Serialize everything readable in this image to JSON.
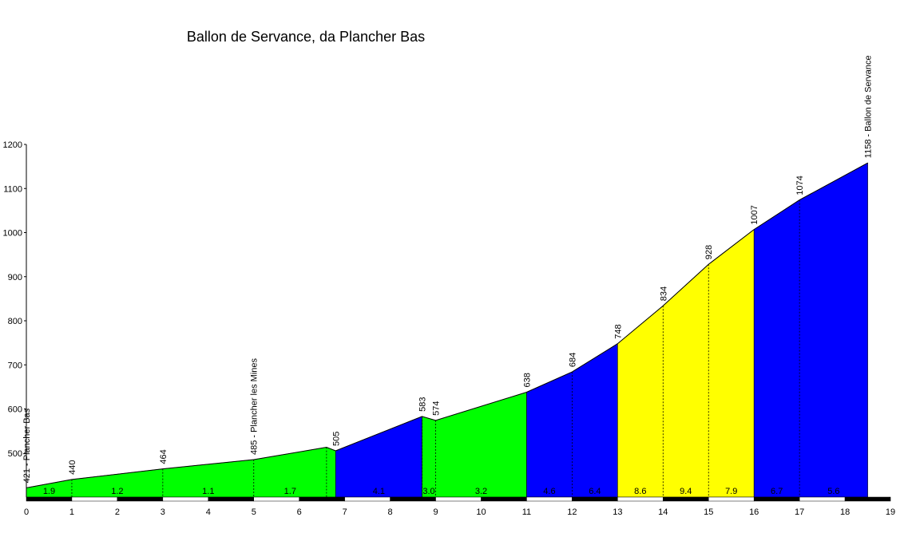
{
  "chart_data": {
    "type": "area",
    "title": "Ballon de Servance, da Plancher Bas",
    "xlabel": "",
    "ylabel": "",
    "xlim": [
      0,
      19
    ],
    "ylim": [
      400,
      1200
    ],
    "x_ticks": [
      0,
      1,
      2,
      3,
      4,
      5,
      6,
      7,
      8,
      9,
      10,
      11,
      12,
      13,
      14,
      15,
      16,
      17,
      18,
      19
    ],
    "y_ticks": [
      500,
      600,
      700,
      800,
      900,
      1000,
      1100,
      1200
    ],
    "points": [
      {
        "x": 0,
        "y": 421
      },
      {
        "x": 1,
        "y": 440
      },
      {
        "x": 3,
        "y": 464
      },
      {
        "x": 5,
        "y": 485
      },
      {
        "x": 6.6,
        "y": 513
      },
      {
        "x": 6.8,
        "y": 505
      },
      {
        "x": 8.7,
        "y": 583
      },
      {
        "x": 9.0,
        "y": 574
      },
      {
        "x": 11,
        "y": 638
      },
      {
        "x": 12,
        "y": 684
      },
      {
        "x": 13,
        "y": 748
      },
      {
        "x": 14,
        "y": 834
      },
      {
        "x": 15,
        "y": 928
      },
      {
        "x": 16,
        "y": 1007
      },
      {
        "x": 17,
        "y": 1074
      },
      {
        "x": 18.5,
        "y": 1158
      }
    ],
    "segments": [
      {
        "x0": 0,
        "x1": 6.8,
        "color": "#00ff00"
      },
      {
        "x0": 6.8,
        "x1": 8.7,
        "color": "#0000ff"
      },
      {
        "x0": 8.7,
        "x1": 11,
        "color": "#00ff00"
      },
      {
        "x0": 11,
        "x1": 13,
        "color": "#0000ff"
      },
      {
        "x0": 13,
        "x1": 16,
        "color": "#ffff00"
      },
      {
        "x0": 16,
        "x1": 18.5,
        "color": "#0000ff"
      }
    ],
    "markers": [
      {
        "x": 0,
        "label": "421 - Plancher Bas",
        "type": "place"
      },
      {
        "x": 1,
        "label": "440",
        "type": "elev"
      },
      {
        "x": 3,
        "label": "464",
        "type": "elev"
      },
      {
        "x": 5,
        "label": "485 - Plancher les Mines",
        "type": "place"
      },
      {
        "x": 6.8,
        "label": "505",
        "type": "elev"
      },
      {
        "x": 8.7,
        "label": "583",
        "type": "elev"
      },
      {
        "x": 9.0,
        "label": "574",
        "type": "elev"
      },
      {
        "x": 11,
        "label": "638",
        "type": "elev"
      },
      {
        "x": 12,
        "label": "684",
        "type": "elev"
      },
      {
        "x": 13,
        "label": "748",
        "type": "elev"
      },
      {
        "x": 14,
        "label": "834",
        "type": "elev"
      },
      {
        "x": 15,
        "label": "928",
        "type": "elev"
      },
      {
        "x": 16,
        "label": "1007",
        "type": "elev"
      },
      {
        "x": 17,
        "label": "1074",
        "type": "elev"
      },
      {
        "x": 18.5,
        "label": "1158 - Ballon de Servance",
        "type": "place"
      }
    ],
    "dashed_x": [
      1,
      3,
      5,
      6.6,
      8.7,
      9.0,
      12,
      14,
      15,
      17
    ],
    "gradients": [
      {
        "x": 0.5,
        "label": "1.9"
      },
      {
        "x": 2,
        "label": "1.2"
      },
      {
        "x": 4,
        "label": "1.1"
      },
      {
        "x": 5.8,
        "label": "1.7"
      },
      {
        "x": 7.75,
        "label": "4.1"
      },
      {
        "x": 8.85,
        "label": "3.0"
      },
      {
        "x": 10,
        "label": "3.2"
      },
      {
        "x": 11.5,
        "label": "4.6"
      },
      {
        "x": 12.5,
        "label": "6.4"
      },
      {
        "x": 13.5,
        "label": "8.6"
      },
      {
        "x": 14.5,
        "label": "9.4"
      },
      {
        "x": 15.5,
        "label": "7.9"
      },
      {
        "x": 16.5,
        "label": "6.7"
      },
      {
        "x": 17.75,
        "label": "5.6"
      }
    ]
  }
}
